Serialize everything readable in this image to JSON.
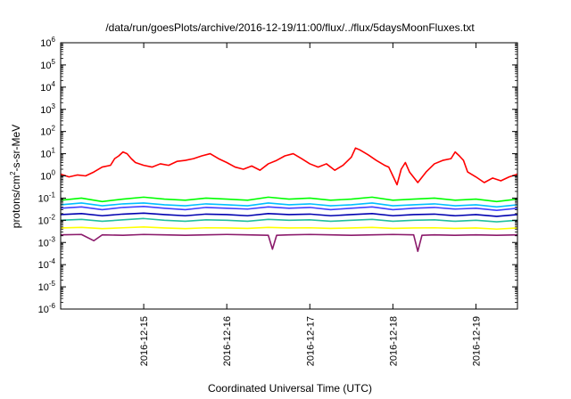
{
  "chart_data": {
    "type": "line",
    "title": "/data/run/goesPlots/archive/2016-12-19/11:00/flux/../flux/5daysMoonFluxes.txt",
    "xlabel": "Coordinated Universal Time (UTC)",
    "ylabel": {
      "prefix": "protons/cm",
      "exponent": "2",
      "suffix": "-s-sr-MeV"
    },
    "y_scale": "log",
    "ylim": [
      1e-06,
      1000000.0
    ],
    "xlim_days": [
      0,
      5.5
    ],
    "y_ticks": [
      {
        "base": "10",
        "exp": "6",
        "value": 1000000.0
      },
      {
        "base": "10",
        "exp": "5",
        "value": 100000.0
      },
      {
        "base": "10",
        "exp": "4",
        "value": 10000.0
      },
      {
        "base": "10",
        "exp": "3",
        "value": 1000.0
      },
      {
        "base": "10",
        "exp": "2",
        "value": 100.0
      },
      {
        "base": "10",
        "exp": "1",
        "value": 10.0
      },
      {
        "base": "10",
        "exp": "0",
        "value": 1.0
      },
      {
        "base": "10",
        "exp": "-1",
        "value": 0.1
      },
      {
        "base": "10",
        "exp": "-2",
        "value": 0.01
      },
      {
        "base": "10",
        "exp": "-3",
        "value": 0.001
      },
      {
        "base": "10",
        "exp": "-4",
        "value": 0.0001
      },
      {
        "base": "10",
        "exp": "-5",
        "value": 1e-05
      },
      {
        "base": "10",
        "exp": "-6",
        "value": 1e-06
      }
    ],
    "x_ticks": [
      {
        "label": "2016-12-15",
        "day": 1
      },
      {
        "label": "2016-12-16",
        "day": 2
      },
      {
        "label": "2016-12-17",
        "day": 3
      },
      {
        "label": "2016-12-18",
        "day": 4
      },
      {
        "label": "2016-12-19",
        "day": 5
      }
    ],
    "grid": false,
    "legend": "none",
    "series": [
      {
        "color": "#ff0000",
        "x": [
          0.0,
          0.1,
          0.2,
          0.3,
          0.4,
          0.5,
          0.6,
          0.65,
          0.7,
          0.75,
          0.8,
          0.85,
          0.9,
          1.0,
          1.1,
          1.2,
          1.3,
          1.4,
          1.5,
          1.6,
          1.7,
          1.8,
          1.9,
          2.0,
          2.1,
          2.2,
          2.3,
          2.4,
          2.5,
          2.6,
          2.7,
          2.8,
          2.9,
          3.0,
          3.1,
          3.2,
          3.3,
          3.4,
          3.5,
          3.55,
          3.6,
          3.7,
          3.8,
          3.9,
          3.95,
          4.0,
          4.05,
          4.1,
          4.15,
          4.2,
          4.3,
          4.4,
          4.5,
          4.6,
          4.7,
          4.75,
          4.8,
          4.85,
          4.9,
          5.0,
          5.1,
          5.2,
          5.3,
          5.4,
          5.5
        ],
        "values": [
          1.2,
          0.9,
          1.1,
          1.0,
          1.5,
          2.5,
          3.0,
          6.0,
          8.0,
          12.0,
          10.0,
          6.0,
          4.0,
          3.0,
          2.5,
          3.5,
          3.0,
          4.5,
          5.0,
          6.0,
          8.0,
          10.0,
          6.0,
          4.0,
          2.5,
          2.0,
          2.8,
          1.8,
          3.5,
          5.0,
          8.0,
          10.0,
          6.0,
          3.5,
          2.5,
          3.5,
          1.8,
          3.0,
          7.0,
          18.0,
          15.0,
          9.0,
          5.0,
          3.0,
          2.5,
          1.0,
          0.4,
          2.0,
          4.0,
          1.5,
          0.5,
          1.5,
          3.5,
          5.0,
          6.0,
          12.0,
          8.0,
          5.0,
          1.5,
          0.9,
          0.5,
          0.8,
          0.6,
          0.9,
          1.2
        ]
      },
      {
        "color": "#00ff00",
        "x": [
          0.0,
          0.25,
          0.5,
          0.75,
          1.0,
          1.25,
          1.5,
          1.75,
          2.0,
          2.25,
          2.5,
          2.75,
          3.0,
          3.25,
          3.5,
          3.75,
          4.0,
          4.25,
          4.5,
          4.75,
          5.0,
          5.25,
          5.5
        ],
        "values": [
          0.08,
          0.1,
          0.07,
          0.09,
          0.11,
          0.09,
          0.08,
          0.1,
          0.09,
          0.08,
          0.11,
          0.09,
          0.1,
          0.08,
          0.09,
          0.11,
          0.08,
          0.09,
          0.1,
          0.08,
          0.09,
          0.07,
          0.09
        ]
      },
      {
        "color": "#00bfff",
        "x": [
          0.0,
          0.25,
          0.5,
          0.75,
          1.0,
          1.25,
          1.5,
          1.75,
          2.0,
          2.25,
          2.5,
          2.75,
          3.0,
          3.25,
          3.5,
          3.75,
          4.0,
          4.25,
          4.5,
          4.75,
          5.0,
          5.25,
          5.5
        ],
        "values": [
          0.05,
          0.06,
          0.045,
          0.055,
          0.06,
          0.05,
          0.045,
          0.055,
          0.05,
          0.045,
          0.06,
          0.05,
          0.055,
          0.045,
          0.05,
          0.06,
          0.045,
          0.05,
          0.055,
          0.045,
          0.05,
          0.04,
          0.05
        ]
      },
      {
        "color": "#4040ff",
        "x": [
          0.0,
          0.25,
          0.5,
          0.75,
          1.0,
          1.25,
          1.5,
          1.75,
          2.0,
          2.25,
          2.5,
          2.75,
          3.0,
          3.25,
          3.5,
          3.75,
          4.0,
          4.25,
          4.5,
          4.75,
          5.0,
          5.25,
          5.5
        ],
        "values": [
          0.035,
          0.04,
          0.03,
          0.038,
          0.042,
          0.035,
          0.03,
          0.038,
          0.035,
          0.032,
          0.04,
          0.035,
          0.038,
          0.03,
          0.035,
          0.04,
          0.03,
          0.035,
          0.038,
          0.032,
          0.035,
          0.028,
          0.035
        ]
      },
      {
        "color": "#0000b0",
        "x": [
          0.0,
          0.25,
          0.5,
          0.75,
          1.0,
          1.25,
          1.5,
          1.75,
          2.0,
          2.25,
          2.5,
          2.75,
          3.0,
          3.25,
          3.5,
          3.75,
          4.0,
          4.25,
          4.5,
          4.75,
          5.0,
          5.25,
          5.5
        ],
        "values": [
          0.018,
          0.02,
          0.016,
          0.019,
          0.021,
          0.018,
          0.016,
          0.019,
          0.018,
          0.016,
          0.02,
          0.018,
          0.019,
          0.016,
          0.018,
          0.02,
          0.016,
          0.018,
          0.019,
          0.016,
          0.018,
          0.015,
          0.018
        ]
      },
      {
        "color": "#20c0a0",
        "x": [
          0.0,
          0.25,
          0.5,
          0.75,
          1.0,
          1.25,
          1.5,
          1.75,
          2.0,
          2.25,
          2.5,
          2.75,
          3.0,
          3.25,
          3.5,
          3.75,
          4.0,
          4.25,
          4.5,
          4.75,
          5.0,
          5.25,
          5.5
        ],
        "values": [
          0.01,
          0.011,
          0.009,
          0.0105,
          0.012,
          0.01,
          0.009,
          0.0105,
          0.01,
          0.009,
          0.011,
          0.01,
          0.0105,
          0.009,
          0.01,
          0.011,
          0.009,
          0.01,
          0.0105,
          0.009,
          0.01,
          0.0085,
          0.01
        ]
      },
      {
        "color": "#ffff00",
        "x": [
          0.0,
          0.25,
          0.5,
          0.75,
          1.0,
          1.25,
          1.5,
          1.75,
          2.0,
          2.25,
          2.5,
          2.75,
          3.0,
          3.25,
          3.5,
          3.75,
          4.0,
          4.25,
          4.5,
          4.75,
          5.0,
          5.25,
          5.5
        ],
        "values": [
          0.0045,
          0.0048,
          0.0042,
          0.0046,
          0.005,
          0.0045,
          0.0042,
          0.0046,
          0.0045,
          0.0043,
          0.0048,
          0.0045,
          0.0046,
          0.0043,
          0.0045,
          0.0048,
          0.0043,
          0.0045,
          0.0046,
          0.0043,
          0.0045,
          0.004,
          0.0045
        ]
      },
      {
        "color": "#8b1a6b",
        "x": [
          0.0,
          0.25,
          0.4,
          0.5,
          0.75,
          1.0,
          1.25,
          1.5,
          1.75,
          2.0,
          2.25,
          2.5,
          2.55,
          2.6,
          2.75,
          3.0,
          3.25,
          3.5,
          3.75,
          4.0,
          4.25,
          4.3,
          4.35,
          4.5,
          4.75,
          5.0,
          5.25,
          5.5
        ],
        "values": [
          0.0022,
          0.0023,
          0.0012,
          0.0022,
          0.0021,
          0.0023,
          0.0022,
          0.0021,
          0.0022,
          0.0023,
          0.0022,
          0.0021,
          0.0005,
          0.0021,
          0.0022,
          0.0023,
          0.0022,
          0.0021,
          0.0022,
          0.0023,
          0.0022,
          0.0004,
          0.0021,
          0.0022,
          0.0021,
          0.0022,
          0.0021,
          0.0022
        ]
      }
    ]
  }
}
